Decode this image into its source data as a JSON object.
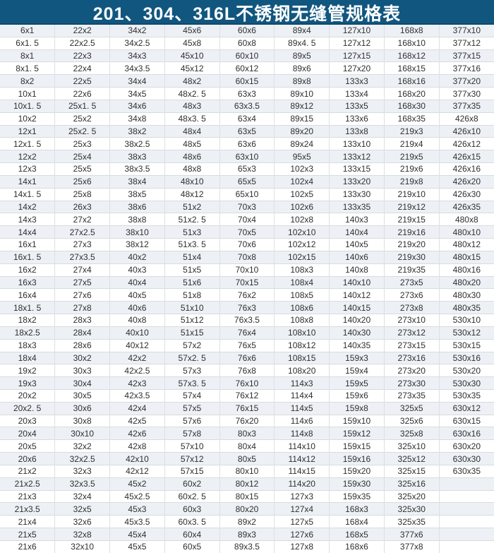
{
  "title": "201、304、316L不锈钢无缝管规格表",
  "colors": {
    "title_bg": "#11567f",
    "title_text": "#ffffff",
    "row_alt": "#edf1f6",
    "row_base": "#ffffff",
    "grid": "#d8dbde",
    "grid_v": "#dce0e4",
    "cell_text": "#2f2f2f"
  },
  "table": {
    "columns": 9,
    "rows": [
      [
        "6x1",
        "22x2",
        "34x2",
        "45x6",
        "60x6",
        "89x4",
        "127x10",
        "168x8",
        "377x10"
      ],
      [
        "6x1. 5",
        "22x2.5",
        "34x2.5",
        "45x8",
        "60x8",
        "89x4. 5",
        "127x12",
        "168x10",
        "377x12"
      ],
      [
        "8x1",
        "22x3",
        "34x3",
        "45x10",
        "60x10",
        "89x5",
        "127x15",
        "168x12",
        "377x15"
      ],
      [
        "8x1. 5",
        "22x4",
        "34x3.5",
        "45x12",
        "60x12",
        "89x6",
        "127x20",
        "168x15",
        "377x16"
      ],
      [
        "8x2",
        "22x5",
        "34x4",
        "48x2",
        "60x15",
        "89x8",
        "133x3",
        "168x16",
        "377x20"
      ],
      [
        "10x1",
        "22x6",
        "34x5",
        "48x2. 5",
        "63x3",
        "89x10",
        "133x4",
        "168x20",
        "377x30"
      ],
      [
        "10x1. 5",
        "25x1. 5",
        "34x6",
        "48x3",
        "63x3.5",
        "89x12",
        "133x5",
        "168x30",
        "377x35"
      ],
      [
        "10x2",
        "25x2",
        "34x8",
        "48x3. 5",
        "63x4",
        "89x15",
        "133x6",
        "168x35",
        "426x8"
      ],
      [
        "12x1",
        "25x2. 5",
        "38x2",
        "48x4",
        "63x5",
        "89x20",
        "133x8",
        "219x3",
        "426x10"
      ],
      [
        "12x1. 5",
        "25x3",
        "38x2.5",
        "48x5",
        "63x6",
        "89x24",
        "133x10",
        "219x4",
        "426x12"
      ],
      [
        "12x2",
        "25x4",
        "38x3",
        "48x6",
        "63x10",
        "95x5",
        "133x12",
        "219x5",
        "426x15"
      ],
      [
        "12x3",
        "25x5",
        "38x3.5",
        "48x8",
        "65x3",
        "102x3",
        "133x15",
        "219x6",
        "426x16"
      ],
      [
        "14x1",
        "25x6",
        "38x4",
        "48x10",
        "65x5",
        "102x4",
        "133x20",
        "219x8",
        "426x20"
      ],
      [
        "14x1. 5",
        "25x8",
        "38x5",
        "48x12",
        "65x10",
        "102x5",
        "133x30",
        "219x10",
        "426x30"
      ],
      [
        "14x2",
        "26x3",
        "38x6",
        "51x2",
        "70x3",
        "102x6",
        "133x35",
        "219x12",
        "426x35"
      ],
      [
        "14x3",
        "27x2",
        "38x8",
        "51x2. 5",
        "70x4",
        "102x8",
        "140x3",
        "219x15",
        "480x8"
      ],
      [
        "14x4",
        "27x2.5",
        "38x10",
        "51x3",
        "70x5",
        "102x10",
        "140x4",
        "219x16",
        "480x10"
      ],
      [
        "16x1",
        "27x3",
        "38x12",
        "51x3. 5",
        "70x6",
        "102x12",
        "140x5",
        "219x20",
        "480x12"
      ],
      [
        "16x1. 5",
        "27x3.5",
        "40x2",
        "51x4",
        "70x8",
        "102x15",
        "140x6",
        "219x30",
        "480x15"
      ],
      [
        "16x2",
        "27x4",
        "40x3",
        "51x5",
        "70x10",
        "108x3",
        "140x8",
        "219x35",
        "480x16"
      ],
      [
        "16x3",
        "27x5",
        "40x4",
        "51x6",
        "70x15",
        "108x4",
        "140x10",
        "273x5",
        "480x20"
      ],
      [
        "16x4",
        "27x6",
        "40x5",
        "51x8",
        "76x2",
        "108x5",
        "140x12",
        "273x6",
        "480x30"
      ],
      [
        "18x1. 5",
        "27x8",
        "40x6",
        "51x10",
        "76x3",
        "108x6",
        "140x15",
        "273x8",
        "480x35"
      ],
      [
        "18x2",
        "28x3",
        "40x8",
        "51x12",
        "76x3.5",
        "108x8",
        "140x20",
        "273x10",
        "530x10"
      ],
      [
        "18x2.5",
        "28x4",
        "40x10",
        "51x15",
        "76x4",
        "108x10",
        "140x30",
        "273x12",
        "530x12"
      ],
      [
        "18x3",
        "28x6",
        "40x12",
        "57x2",
        "76x5",
        "108x12",
        "140x35",
        "273x15",
        "530x15"
      ],
      [
        "18x4",
        "30x2",
        "42x2",
        "57x2. 5",
        "76x6",
        "108x15",
        "159x3",
        "273x16",
        "530x16"
      ],
      [
        "19x2",
        "30x3",
        "42x2.5",
        "57x3",
        "76x8",
        "108x20",
        "159x4",
        "273x20",
        "530x20"
      ],
      [
        "19x3",
        "30x4",
        "42x3",
        "57x3. 5",
        "76x10",
        "114x3",
        "159x5",
        "273x30",
        "530x30"
      ],
      [
        "20x2",
        "30x5",
        "42x3.5",
        "57x4",
        "76x12",
        "114x4",
        "159x6",
        "273x35",
        "530x35"
      ],
      [
        "20x2. 5",
        "30x6",
        "42x4",
        "57x5",
        "76x15",
        "114x5",
        "159x8",
        "325x5",
        "630x12"
      ],
      [
        "20x3",
        "30x8",
        "42x5",
        "57x6",
        "76x20",
        "114x6",
        "159x10",
        "325x6",
        "630x15"
      ],
      [
        "20x4",
        "30x10",
        "42x6",
        "57x8",
        "80x3",
        "114x8",
        "159x12",
        "325x8",
        "630x16"
      ],
      [
        "20x5",
        "32x2",
        "42x8",
        "57x10",
        "80x4",
        "114x10",
        "159x15",
        "325x10",
        "630x20"
      ],
      [
        "20x6",
        "32x2.5",
        "42x10",
        "57x12",
        "80x5",
        "114x12",
        "159x16",
        "325x12",
        "630x30"
      ],
      [
        "21x2",
        "32x3",
        "42x12",
        "57x15",
        "80x10",
        "114x15",
        "159x20",
        "325x15",
        "630x35"
      ],
      [
        "21x2.5",
        "32x3.5",
        "45x2",
        "60x2",
        "80x12",
        "114x20",
        "159x30",
        "325x16",
        ""
      ],
      [
        "21x3",
        "32x4",
        "45x2.5",
        "60x2. 5",
        "80x15",
        "127x3",
        "159x35",
        "325x20",
        ""
      ],
      [
        "21x3.5",
        "32x5",
        "45x3",
        "60x3",
        "80x20",
        "127x4",
        "168x3",
        "325x30",
        ""
      ],
      [
        "21x4",
        "32x6",
        "45x3.5",
        "60x3. 5",
        "89x2",
        "127x5",
        "168x4",
        "325x35",
        ""
      ],
      [
        "21x5",
        "32x8",
        "45x4",
        "60x4",
        "89x3",
        "127x6",
        "168x5",
        "377x6",
        ""
      ],
      [
        "21x6",
        "32x10",
        "45x5",
        "60x5",
        "89x3.5",
        "127x8",
        "168x6",
        "377x8",
        ""
      ]
    ]
  }
}
